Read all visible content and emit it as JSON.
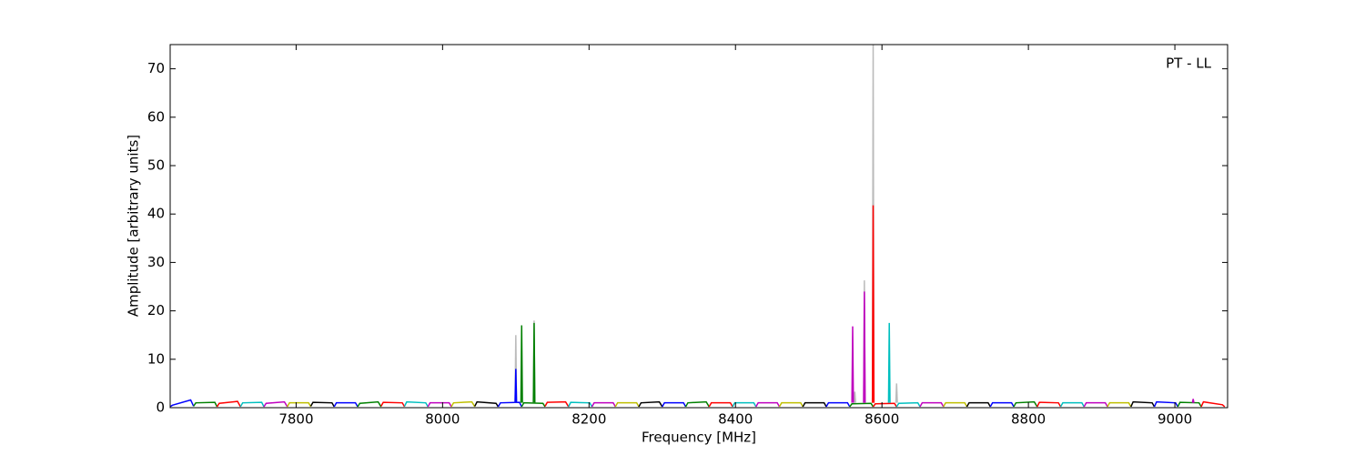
{
  "chart_data": {
    "type": "line",
    "annotation": "PT - LL",
    "x_label": "Frequency [MHz]",
    "y_label": "Amplitude [arbitrary units]",
    "xlim": [
      7628,
      9072
    ],
    "ylim": [
      0,
      75
    ],
    "xticks": [
      7800,
      8000,
      8200,
      8400,
      8600,
      8800,
      9000
    ],
    "yticks": [
      0,
      10,
      20,
      30,
      40,
      50,
      60,
      70
    ],
    "series": [
      {
        "color": "#0000ff",
        "x": [
          7628,
          7631,
          7656,
          7660
        ],
        "values": [
          0.2,
          0.5,
          1.6,
          0.3
        ]
      },
      {
        "color": "#008000",
        "x": [
          7660,
          7663,
          7689,
          7692
        ],
        "values": [
          0.3,
          1.0,
          1.1,
          0.2
        ]
      },
      {
        "color": "#ff0000",
        "x": [
          7692,
          7695,
          7720,
          7724
        ],
        "values": [
          0.2,
          0.9,
          1.3,
          0.2
        ]
      },
      {
        "color": "#00bfbf",
        "x": [
          7724,
          7727,
          7753,
          7756
        ],
        "values": [
          0.2,
          1.0,
          1.1,
          0.2
        ]
      },
      {
        "color": "#bf00bf",
        "x": [
          7756,
          7759,
          7784,
          7788
        ],
        "values": [
          0.2,
          0.9,
          1.2,
          0.2
        ]
      },
      {
        "color": "#bfbf00",
        "x": [
          7788,
          7791,
          7817,
          7820
        ],
        "values": [
          0.2,
          1.0,
          1.0,
          0.2
        ]
      },
      {
        "color": "#000000",
        "x": [
          7820,
          7823,
          7849,
          7852
        ],
        "values": [
          0.3,
          1.1,
          1.0,
          0.2
        ]
      },
      {
        "color": "#0000ff",
        "x": [
          7852,
          7855,
          7881,
          7884
        ],
        "values": [
          0.2,
          1.0,
          1.0,
          0.2
        ]
      },
      {
        "color": "#008000",
        "x": [
          7884,
          7887,
          7912,
          7916
        ],
        "values": [
          0.2,
          0.9,
          1.2,
          0.2
        ]
      },
      {
        "color": "#ff0000",
        "x": [
          7916,
          7919,
          7945,
          7948
        ],
        "values": [
          0.3,
          1.1,
          1.0,
          0.2
        ]
      },
      {
        "color": "#00bfbf",
        "x": [
          7948,
          7951,
          7977,
          7980
        ],
        "values": [
          0.3,
          1.2,
          1.0,
          0.2
        ]
      },
      {
        "color": "#bf00bf",
        "x": [
          7980,
          7983,
          8009,
          8012
        ],
        "values": [
          0.2,
          1.0,
          1.0,
          0.2
        ]
      },
      {
        "color": "#bfbf00",
        "x": [
          8012,
          8015,
          8040,
          8044
        ],
        "values": [
          0.2,
          1.0,
          1.2,
          0.2
        ]
      },
      {
        "color": "#000000",
        "x": [
          8044,
          8047,
          8073,
          8076
        ],
        "values": [
          0.3,
          1.2,
          0.9,
          0.2
        ]
      },
      {
        "color": "#0000ff",
        "x": [
          8076,
          8079,
          8105,
          8108
        ],
        "values": [
          0.2,
          1.0,
          1.1,
          0.2
        ]
      },
      {
        "color": "#008000",
        "x": [
          8108,
          8111,
          8137,
          8140
        ],
        "values": [
          0.2,
          1.0,
          0.9,
          0.2
        ]
      },
      {
        "color": "#ff0000",
        "x": [
          8140,
          8143,
          8168,
          8172
        ],
        "values": [
          0.3,
          1.1,
          1.2,
          0.2
        ]
      },
      {
        "color": "#00bfbf",
        "x": [
          8172,
          8175,
          8201,
          8204
        ],
        "values": [
          0.2,
          1.1,
          1.0,
          0.2
        ]
      },
      {
        "color": "#bf00bf",
        "x": [
          8204,
          8207,
          8233,
          8236
        ],
        "values": [
          0.2,
          1.0,
          1.0,
          0.2
        ]
      },
      {
        "color": "#bfbf00",
        "x": [
          8236,
          8239,
          8265,
          8268
        ],
        "values": [
          0.2,
          1.0,
          1.0,
          0.2
        ]
      },
      {
        "color": "#000000",
        "x": [
          8268,
          8271,
          8296,
          8300
        ],
        "values": [
          0.2,
          1.0,
          1.2,
          0.2
        ]
      },
      {
        "color": "#0000ff",
        "x": [
          8300,
          8303,
          8329,
          8332
        ],
        "values": [
          0.2,
          1.0,
          1.0,
          0.2
        ]
      },
      {
        "color": "#008000",
        "x": [
          8332,
          8335,
          8360,
          8364
        ],
        "values": [
          0.2,
          1.0,
          1.2,
          0.2
        ]
      },
      {
        "color": "#ff0000",
        "x": [
          8364,
          8367,
          8393,
          8396
        ],
        "values": [
          0.2,
          1.0,
          1.0,
          0.2
        ]
      },
      {
        "color": "#00bfbf",
        "x": [
          8396,
          8399,
          8425,
          8428
        ],
        "values": [
          0.2,
          1.0,
          1.0,
          0.2
        ]
      },
      {
        "color": "#bf00bf",
        "x": [
          8428,
          8431,
          8457,
          8460
        ],
        "values": [
          0.2,
          1.0,
          1.0,
          0.2
        ]
      },
      {
        "color": "#bfbf00",
        "x": [
          8460,
          8463,
          8489,
          8492
        ],
        "values": [
          0.2,
          1.0,
          1.0,
          0.2
        ]
      },
      {
        "color": "#000000",
        "x": [
          8492,
          8495,
          8521,
          8524
        ],
        "values": [
          0.2,
          1.0,
          1.0,
          0.2
        ]
      },
      {
        "color": "#0000ff",
        "x": [
          8524,
          8527,
          8553,
          8556
        ],
        "values": [
          0.2,
          1.0,
          1.0,
          0.2
        ]
      },
      {
        "color": "#008000",
        "x": [
          8556,
          8559,
          8585,
          8588
        ],
        "values": [
          0.2,
          0.8,
          0.9,
          0.2
        ]
      },
      {
        "color": "#ff0000",
        "x": [
          8588,
          8591,
          8617,
          8620
        ],
        "values": [
          0.2,
          0.8,
          0.9,
          0.2
        ]
      },
      {
        "color": "#00bfbf",
        "x": [
          8620,
          8623,
          8649,
          8652
        ],
        "values": [
          0.2,
          0.9,
          1.0,
          0.2
        ]
      },
      {
        "color": "#bf00bf",
        "x": [
          8652,
          8655,
          8681,
          8684
        ],
        "values": [
          0.2,
          1.0,
          1.0,
          0.2
        ]
      },
      {
        "color": "#bfbf00",
        "x": [
          8684,
          8687,
          8713,
          8716
        ],
        "values": [
          0.2,
          1.0,
          1.0,
          0.2
        ]
      },
      {
        "color": "#000000",
        "x": [
          8716,
          8719,
          8745,
          8748
        ],
        "values": [
          0.2,
          1.0,
          1.0,
          0.2
        ]
      },
      {
        "color": "#0000ff",
        "x": [
          8748,
          8751,
          8777,
          8780
        ],
        "values": [
          0.2,
          1.0,
          1.0,
          0.2
        ]
      },
      {
        "color": "#008000",
        "x": [
          8780,
          8783,
          8808,
          8812
        ],
        "values": [
          0.2,
          1.0,
          1.2,
          0.2
        ]
      },
      {
        "color": "#ff0000",
        "x": [
          8812,
          8815,
          8841,
          8844
        ],
        "values": [
          0.2,
          1.1,
          1.0,
          0.2
        ]
      },
      {
        "color": "#00bfbf",
        "x": [
          8844,
          8847,
          8873,
          8876
        ],
        "values": [
          0.2,
          1.0,
          1.0,
          0.2
        ]
      },
      {
        "color": "#bf00bf",
        "x": [
          8876,
          8879,
          8905,
          8908
        ],
        "values": [
          0.2,
          1.0,
          1.0,
          0.2
        ]
      },
      {
        "color": "#bfbf00",
        "x": [
          8908,
          8911,
          8937,
          8940
        ],
        "values": [
          0.2,
          1.0,
          1.0,
          0.2
        ]
      },
      {
        "color": "#000000",
        "x": [
          8940,
          8943,
          8969,
          8972
        ],
        "values": [
          0.2,
          1.2,
          1.0,
          0.2
        ]
      },
      {
        "color": "#0000ff",
        "x": [
          8972,
          8975,
          9001,
          9004
        ],
        "values": [
          0.2,
          1.2,
          1.0,
          0.2
        ]
      },
      {
        "color": "#008000",
        "x": [
          9004,
          9007,
          9033,
          9036
        ],
        "values": [
          0.2,
          1.1,
          1.0,
          0.2
        ]
      },
      {
        "color": "#ff0000",
        "x": [
          9036,
          9039,
          9065,
          9068
        ],
        "values": [
          0.2,
          1.2,
          0.6,
          0.2
        ]
      },
      {
        "color": "#bbbbbb",
        "x": [
          8099,
          8100,
          8101
        ],
        "values": [
          1,
          15,
          1
        ]
      },
      {
        "color": "#bbbbbb",
        "x": [
          8124,
          8125,
          8126
        ],
        "values": [
          1,
          18,
          1
        ]
      },
      {
        "color": "#bbbbbb",
        "x": [
          8562,
          8563,
          8564
        ],
        "values": [
          1,
          3.3,
          1
        ]
      },
      {
        "color": "#bbbbbb",
        "x": [
          8575,
          8576,
          8577
        ],
        "values": [
          1,
          26.3,
          1
        ]
      },
      {
        "color": "#bbbbbb",
        "x": [
          8587,
          8588,
          8589
        ],
        "values": [
          1,
          75,
          1
        ]
      },
      {
        "color": "#bbbbbb",
        "x": [
          8619,
          8620,
          8621
        ],
        "values": [
          1,
          5,
          1
        ]
      },
      {
        "color": "#0000ff",
        "x": [
          8099,
          8100,
          8101
        ],
        "values": [
          1,
          8,
          1
        ]
      },
      {
        "color": "#008000",
        "x": [
          8107,
          8108,
          8109
        ],
        "values": [
          1,
          17,
          1
        ]
      },
      {
        "color": "#008000",
        "x": [
          8124,
          8125,
          8126
        ],
        "values": [
          1,
          17.5,
          1
        ]
      },
      {
        "color": "#bf00bf",
        "x": [
          8559,
          8560,
          8561
        ],
        "values": [
          1,
          16.8,
          1
        ]
      },
      {
        "color": "#bf00bf",
        "x": [
          8575,
          8576,
          8577
        ],
        "values": [
          1,
          24,
          1
        ]
      },
      {
        "color": "#ff0000",
        "x": [
          8587,
          8588,
          8589
        ],
        "values": [
          1,
          41.8,
          1
        ]
      },
      {
        "color": "#00bfbf",
        "x": [
          8609,
          8610,
          8611
        ],
        "values": [
          1,
          17.5,
          1
        ]
      },
      {
        "color": "#bf00bf",
        "x": [
          9024,
          9025,
          9026
        ],
        "values": [
          1,
          1.8,
          1
        ]
      }
    ]
  }
}
